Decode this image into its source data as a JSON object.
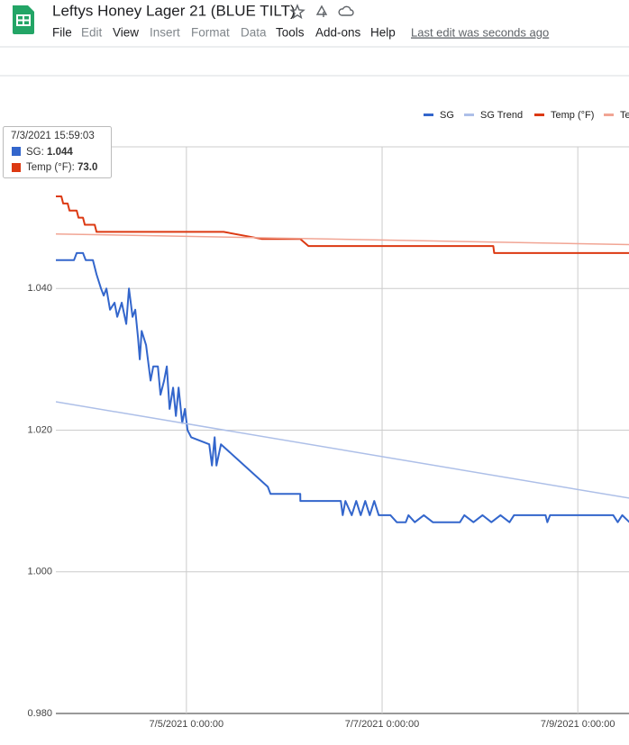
{
  "app": {
    "title": "Leftys Honey Lager 21 (BLUE TILT)",
    "menu": [
      {
        "label": "File",
        "enabled": true
      },
      {
        "label": "Edit",
        "enabled": false
      },
      {
        "label": "View",
        "enabled": true
      },
      {
        "label": "Insert",
        "enabled": false
      },
      {
        "label": "Format",
        "enabled": false
      },
      {
        "label": "Data",
        "enabled": false
      },
      {
        "label": "Tools",
        "enabled": true
      },
      {
        "label": "Add-ons",
        "enabled": true
      },
      {
        "label": "Help",
        "enabled": true
      }
    ],
    "status": "Last edit was seconds ago"
  },
  "chart_data": {
    "type": "line",
    "xlim": [
      "7/3/2021 15:59:03",
      "7/9/2021 12:40:00"
    ],
    "xticks": [
      "7/5/2021 0:00:00",
      "7/7/2021 0:00:00",
      "7/9/2021 0:00:00"
    ],
    "ylim": [
      0.98,
      1.06
    ],
    "yticks": [
      {
        "value": 0.98,
        "label": "0.980"
      },
      {
        "value": 1.0,
        "label": "1.000"
      },
      {
        "value": 1.02,
        "label": "1.020"
      },
      {
        "value": 1.04,
        "label": "1.040"
      }
    ],
    "y2lim": [
      0,
      80
    ],
    "grid": true,
    "legend": "top-right",
    "series": [
      {
        "name": "SG",
        "color": "#3366cc",
        "x": [
          "7/3/2021 15:59:03",
          "7/3/2021 20:25:00",
          "7/3/2021 21:05:00",
          "7/3/2021 22:38:00",
          "7/3/2021 23:18:00",
          "7/4/2021 1:04:00",
          "7/4/2021 1:57:00",
          "7/4/2021 3:04:00",
          "7/4/2021 3:43:00",
          "7/4/2021 4:23:00",
          "7/4/2021 5:16:00",
          "7/4/2021 6:23:00",
          "7/4/2021 7:02:00",
          "7/4/2021 8:09:00",
          "7/4/2021 9:15:00",
          "7/4/2021 9:55:00",
          "7/4/2021 10:48:00",
          "7/4/2021 11:28:00",
          "7/4/2021 12:08:00",
          "7/4/2021 12:34:00",
          "7/4/2021 13:01:00",
          "7/4/2021 14:07:00",
          "7/4/2021 15:13:00",
          "7/4/2021 15:53:00",
          "7/4/2021 17:00:00",
          "7/4/2021 17:39:00",
          "7/4/2021 18:32:00",
          "7/4/2021 19:12:00",
          "7/4/2021 19:52:00",
          "7/4/2021 20:45:00",
          "7/4/2021 21:25:00",
          "7/4/2021 22:05:00",
          "7/4/2021 22:58:00",
          "7/4/2021 23:38:00",
          "7/5/2021 0:17:00",
          "7/5/2021 1:11:00",
          "7/5/2021 5:36:00",
          "7/5/2021 6:16:00",
          "7/5/2021 6:56:00",
          "7/5/2021 7:22:00",
          "7/5/2021 8:28:00",
          "7/5/2021 19:58:00",
          "7/5/2021 20:38:00",
          "7/6/2021 3:56:00",
          "7/6/2021 3:57:00",
          "7/6/2021 13:53:00",
          "7/6/2021 14:20:00",
          "7/6/2021 15:00:00",
          "7/6/2021 16:33:00",
          "7/6/2021 17:39:00",
          "7/6/2021 18:45:00",
          "7/6/2021 19:52:00",
          "7/6/2021 20:58:00",
          "7/6/2021 22:04:00",
          "7/6/2021 23:11:00",
          "7/7/2021 2:03:00",
          "7/7/2021 3:36:00",
          "7/7/2021 5:49:00",
          "7/7/2021 6:28:00",
          "7/7/2021 8:01:00",
          "7/7/2021 10:14:00",
          "7/7/2021 12:27:00",
          "7/7/2021 19:05:00",
          "7/7/2021 20:11:00",
          "7/7/2021 22:24:00",
          "7/8/2021 0:37:00",
          "7/8/2021 2:49:00",
          "7/8/2021 5:02:00",
          "7/8/2021 7:15:00",
          "7/8/2021 8:21:00",
          "7/8/2021 16:06:00",
          "7/8/2021 16:32:00",
          "7/8/2021 17:12:00",
          "7/9/2021 8:41:00",
          "7/9/2021 9:47:00",
          "7/9/2021 10:54:00",
          "7/9/2021 12:40:00"
        ],
        "values": [
          1.044,
          1.044,
          1.045,
          1.045,
          1.044,
          1.044,
          1.042,
          1.04,
          1.039,
          1.04,
          1.037,
          1.038,
          1.036,
          1.038,
          1.035,
          1.04,
          1.036,
          1.037,
          1.033,
          1.03,
          1.034,
          1.032,
          1.027,
          1.029,
          1.029,
          1.025,
          1.027,
          1.029,
          1.023,
          1.026,
          1.022,
          1.026,
          1.021,
          1.023,
          1.02,
          1.019,
          1.018,
          1.015,
          1.019,
          1.015,
          1.018,
          1.012,
          1.011,
          1.011,
          1.01,
          1.01,
          1.008,
          1.01,
          1.008,
          1.01,
          1.008,
          1.01,
          1.008,
          1.01,
          1.008,
          1.008,
          1.007,
          1.007,
          1.008,
          1.007,
          1.008,
          1.007,
          1.007,
          1.008,
          1.007,
          1.008,
          1.007,
          1.008,
          1.007,
          1.008,
          1.008,
          1.007,
          1.008,
          1.008,
          1.007,
          1.008,
          1.007
        ]
      },
      {
        "name": "SG Trend",
        "color": "#adbfe8",
        "x": [
          "7/3/2021 15:59:03",
          "7/9/2021 12:40:00"
        ],
        "values": [
          1.024,
          1.0104
        ]
      },
      {
        "name": "Temp (°F)",
        "color": "#dc3912",
        "axis": "y2",
        "x": [
          "7/3/2021 15:59:03",
          "7/3/2021 17:20:00",
          "7/3/2021 17:46:00",
          "7/3/2021 18:53:00",
          "7/3/2021 19:19:00",
          "7/3/2021 21:05:00",
          "7/3/2021 21:32:00",
          "7/3/2021 22:38:00",
          "7/3/2021 23:05:00",
          "7/4/2021 1:31:00",
          "7/4/2021 1:57:00",
          "7/5/2021 9:08:00",
          "7/5/2021 18:26:00",
          "7/6/2021 3:56:00",
          "7/6/2021 5:56:00",
          "7/8/2021 3:16:00",
          "7/8/2021 3:29:00",
          "7/9/2021 12:40:00"
        ],
        "values": [
          73,
          73,
          72,
          72,
          71,
          71,
          70,
          70,
          69,
          69,
          68,
          68,
          67,
          67,
          66,
          66,
          65,
          65
        ]
      },
      {
        "name": "Temp (°F) Trend",
        "color": "#f1a594",
        "axis": "y2",
        "x": [
          "7/3/2021 15:59:03",
          "7/9/2021 12:40:00"
        ],
        "values": [
          67.7,
          66.2
        ]
      }
    ],
    "tooltip": {
      "temp_label": "73.0"
    }
  }
}
